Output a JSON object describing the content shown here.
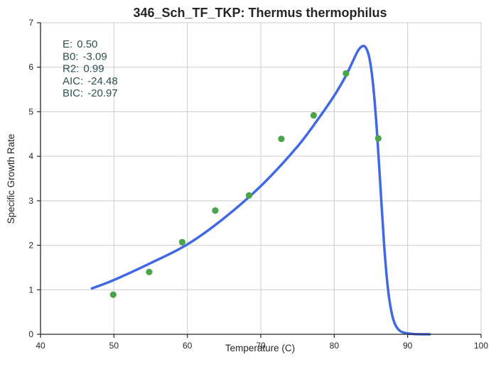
{
  "chart_data": {
    "type": "scatter",
    "title": "346_Sch_TF_TKP: Thermus thermophilus",
    "xlabel": "Temperature (C)",
    "ylabel": "Specific Growth Rate",
    "xlim": [
      40,
      100
    ],
    "ylim": [
      0,
      7
    ],
    "xticks": [
      40,
      50,
      60,
      70,
      80,
      90,
      100
    ],
    "yticks": [
      0,
      1,
      2,
      3,
      4,
      5,
      6,
      7
    ],
    "grid": true,
    "colors": {
      "points": "#4aa54a",
      "fit": "#4169e1",
      "stats": "#2f4f4f"
    },
    "points": {
      "x": [
        49.9,
        54.8,
        59.3,
        63.8,
        68.4,
        72.8,
        77.2,
        81.6,
        86.0
      ],
      "y": [
        0.89,
        1.4,
        2.07,
        2.78,
        3.12,
        4.39,
        4.92,
        5.86,
        4.4
      ]
    },
    "fit": {
      "x": [
        47.0,
        50.0,
        55.0,
        60.0,
        65.0,
        70.0,
        75.0,
        78.0,
        80.0,
        81.5,
        82.5,
        83.2,
        83.8,
        84.3,
        84.8,
        85.3,
        85.8,
        86.3,
        86.8,
        87.3,
        87.8,
        88.3,
        89.0,
        90.0,
        91.0,
        93.0
      ],
      "y": [
        1.03,
        1.22,
        1.6,
        2.02,
        2.61,
        3.33,
        4.22,
        4.88,
        5.36,
        5.78,
        6.12,
        6.36,
        6.47,
        6.44,
        6.2,
        5.6,
        4.6,
        3.3,
        2.0,
        1.05,
        0.5,
        0.22,
        0.07,
        0.02,
        0.005,
        0.0
      ]
    },
    "stats": [
      {
        "label": "E:",
        "value": "0.50"
      },
      {
        "label": "B0:",
        "value": "-3.09"
      },
      {
        "label": "R2:",
        "value": "0.99"
      },
      {
        "label": "AIC:",
        "value": "-24.48"
      },
      {
        "label": "BIC:",
        "value": "-20.97"
      }
    ]
  }
}
